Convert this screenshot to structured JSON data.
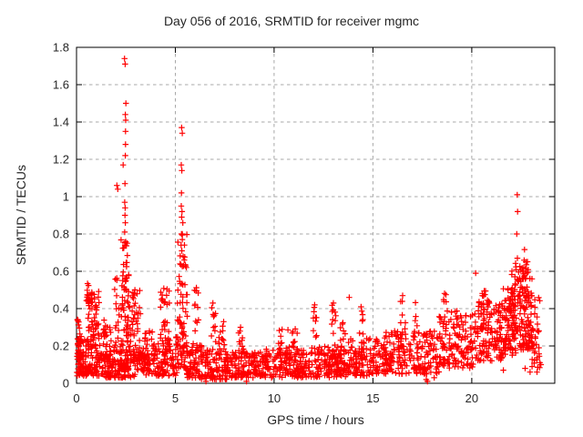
{
  "chart_data": {
    "type": "scatter",
    "title": "Day 056 of 2016, SRMTID for receiver mgmc",
    "xlabel": "GPS time / hours",
    "ylabel": "SRMTID / TECUs",
    "xlim": [
      0,
      24.2
    ],
    "ylim": [
      0,
      1.8
    ],
    "xticks": [
      0,
      5,
      10,
      15,
      20
    ],
    "xtick_labels": [
      "0",
      "5",
      "10",
      "15",
      "20"
    ],
    "yticks": [
      0,
      0.2,
      0.4,
      0.6,
      0.8,
      1.0,
      1.2,
      1.4,
      1.6,
      1.8
    ],
    "ytick_labels": [
      "0",
      "0.2",
      "0.4",
      "0.6",
      "0.8",
      "1",
      "1.2",
      "1.4",
      "1.6",
      "1.8"
    ],
    "grid": true,
    "legend": "none",
    "marker": {
      "shape": "plus",
      "size": 6.5,
      "color": "#ff0000"
    },
    "colors": {
      "marker": "#ff0000",
      "grid": "#a8a8a8",
      "border": "#000000",
      "text": "#262626",
      "background": "#ffffff"
    },
    "seed": 56,
    "points": [
      [
        2.43,
        1.74
      ],
      [
        2.46,
        1.71
      ],
      [
        2.5,
        1.5
      ],
      [
        2.47,
        1.44
      ],
      [
        2.49,
        1.41
      ],
      [
        2.48,
        1.35
      ],
      [
        2.48,
        1.28
      ],
      [
        2.47,
        1.22
      ],
      [
        2.36,
        1.17
      ],
      [
        2.45,
        1.07
      ],
      [
        2.04,
        1.06
      ],
      [
        2.09,
        1.04
      ],
      [
        2.44,
        0.97
      ],
      [
        2.46,
        0.94
      ],
      [
        2.45,
        0.9
      ],
      [
        2.47,
        0.86
      ],
      [
        2.44,
        0.81
      ],
      [
        5.32,
        1.37
      ],
      [
        5.35,
        1.34
      ],
      [
        5.3,
        1.17
      ],
      [
        5.33,
        1.14
      ],
      [
        5.31,
        1.02
      ],
      [
        5.3,
        0.95
      ],
      [
        5.34,
        0.92
      ],
      [
        5.32,
        0.89
      ],
      [
        5.38,
        0.86
      ],
      [
        5.31,
        0.8
      ],
      [
        5.35,
        0.77
      ],
      [
        5.29,
        0.74
      ],
      [
        5.33,
        0.71
      ],
      [
        5.4,
        0.68
      ],
      [
        5.45,
        0.66
      ],
      [
        5.24,
        0.64
      ],
      [
        22.3,
        1.01
      ],
      [
        22.32,
        0.92
      ],
      [
        22.28,
        0.8
      ],
      [
        22.31,
        0.67
      ],
      [
        0.6,
        0.47
      ],
      [
        0.66,
        0.45
      ],
      [
        16.5,
        0.47
      ],
      [
        13.8,
        0.46
      ],
      [
        6.9,
        0.43
      ],
      [
        13.0,
        0.43
      ],
      [
        12.05,
        0.42
      ],
      [
        14.4,
        0.41
      ],
      [
        8.3,
        0.3
      ],
      [
        20.2,
        0.59
      ],
      [
        17.7,
        0.02
      ],
      [
        17.76,
        0.01
      ],
      [
        6.55,
        0.01
      ],
      [
        8.6,
        0.01
      ],
      [
        23.5,
        0.1
      ],
      [
        22.95,
        0.06
      ],
      [
        18.1,
        0.03
      ],
      [
        21.6,
        0.07
      ],
      [
        22.7,
        0.08
      ],
      [
        23.3,
        0.06
      ]
    ],
    "clusters": [
      {
        "x": [
          0.02,
          0.6
        ],
        "y": [
          0.04,
          0.24
        ],
        "n": 70,
        "bias": 1.4
      },
      {
        "x": [
          0.02,
          0.25
        ],
        "y": [
          0.1,
          0.35
        ],
        "n": 25,
        "bias": 1.2
      },
      {
        "x": [
          0.5,
          1.15
        ],
        "y": [
          0.2,
          0.5
        ],
        "n": 60,
        "bias": 1.3
      },
      {
        "x": [
          0.55,
          0.8
        ],
        "y": [
          0.42,
          0.56
        ],
        "n": 10,
        "bias": 1.0
      },
      {
        "x": [
          0.6,
          1.4
        ],
        "y": [
          0.04,
          0.22
        ],
        "n": 70,
        "bias": 1.4
      },
      {
        "x": [
          1.25,
          1.75
        ],
        "y": [
          0.12,
          0.34
        ],
        "n": 35,
        "bias": 1.2
      },
      {
        "x": [
          1.4,
          2.3
        ],
        "y": [
          0.03,
          0.2
        ],
        "n": 80,
        "bias": 1.5
      },
      {
        "x": [
          1.92,
          2.18
        ],
        "y": [
          0.2,
          0.6
        ],
        "n": 16,
        "bias": 1.4
      },
      {
        "x": [
          2.25,
          2.65
        ],
        "y": [
          0.08,
          0.78
        ],
        "n": 85,
        "bias": 1.8
      },
      {
        "x": [
          2.7,
          3.25
        ],
        "y": [
          0.12,
          0.52
        ],
        "n": 50,
        "bias": 1.5
      },
      {
        "x": [
          2.3,
          3.7
        ],
        "y": [
          0.03,
          0.18
        ],
        "n": 70,
        "bias": 1.3
      },
      {
        "x": [
          3.3,
          4.25
        ],
        "y": [
          0.04,
          0.3
        ],
        "n": 75,
        "bias": 1.4
      },
      {
        "x": [
          4.25,
          4.7
        ],
        "y": [
          0.1,
          0.52
        ],
        "n": 45,
        "bias": 1.5
      },
      {
        "x": [
          4.3,
          5.1
        ],
        "y": [
          0.04,
          0.25
        ],
        "n": 55,
        "bias": 1.4
      },
      {
        "x": [
          5.1,
          5.6
        ],
        "y": [
          0.08,
          0.82
        ],
        "n": 85,
        "bias": 1.8
      },
      {
        "x": [
          5.55,
          6.35
        ],
        "y": [
          0.03,
          0.22
        ],
        "n": 70,
        "bias": 1.4
      },
      {
        "x": [
          5.95,
          6.2
        ],
        "y": [
          0.28,
          0.55
        ],
        "n": 12,
        "bias": 1.2
      },
      {
        "x": [
          6.3,
          7.65
        ],
        "y": [
          0.02,
          0.18
        ],
        "n": 110,
        "bias": 1.3
      },
      {
        "x": [
          6.8,
          7.05
        ],
        "y": [
          0.18,
          0.42
        ],
        "n": 12,
        "bias": 1.3
      },
      {
        "x": [
          7.15,
          7.5
        ],
        "y": [
          0.18,
          0.34
        ],
        "n": 14,
        "bias": 1.2
      },
      {
        "x": [
          7.6,
          9.6
        ],
        "y": [
          0.03,
          0.17
        ],
        "n": 150,
        "bias": 1.3
      },
      {
        "x": [
          8.2,
          8.45
        ],
        "y": [
          0.15,
          0.3
        ],
        "n": 10,
        "bias": 1.2
      },
      {
        "x": [
          9.6,
          11.6
        ],
        "y": [
          0.03,
          0.19
        ],
        "n": 150,
        "bias": 1.3
      },
      {
        "x": [
          10.2,
          11.3
        ],
        "y": [
          0.15,
          0.3
        ],
        "n": 25,
        "bias": 1.3
      },
      {
        "x": [
          11.6,
          13.7
        ],
        "y": [
          0.03,
          0.2
        ],
        "n": 160,
        "bias": 1.3
      },
      {
        "x": [
          11.95,
          12.15
        ],
        "y": [
          0.2,
          0.42
        ],
        "n": 9,
        "bias": 1.2
      },
      {
        "x": [
          12.9,
          13.12
        ],
        "y": [
          0.2,
          0.43
        ],
        "n": 10,
        "bias": 1.2
      },
      {
        "x": [
          13.35,
          13.65
        ],
        "y": [
          0.17,
          0.34
        ],
        "n": 10,
        "bias": 1.2
      },
      {
        "x": [
          13.7,
          15.3
        ],
        "y": [
          0.04,
          0.24
        ],
        "n": 120,
        "bias": 1.3
      },
      {
        "x": [
          14.3,
          14.55
        ],
        "y": [
          0.2,
          0.4
        ],
        "n": 8,
        "bias": 1.2
      },
      {
        "x": [
          15.3,
          16.4
        ],
        "y": [
          0.05,
          0.28
        ],
        "n": 90,
        "bias": 1.3
      },
      {
        "x": [
          16.4,
          16.65
        ],
        "y": [
          0.22,
          0.46
        ],
        "n": 10,
        "bias": 1.2
      },
      {
        "x": [
          16.4,
          18.35
        ],
        "y": [
          0.05,
          0.28
        ],
        "n": 130,
        "bias": 1.3
      },
      {
        "x": [
          17.0,
          17.25
        ],
        "y": [
          0.24,
          0.44
        ],
        "n": 9,
        "bias": 1.2
      },
      {
        "x": [
          18.35,
          20.1
        ],
        "y": [
          0.08,
          0.4
        ],
        "n": 140,
        "bias": 1.2
      },
      {
        "x": [
          18.5,
          18.75
        ],
        "y": [
          0.3,
          0.5
        ],
        "n": 8,
        "bias": 1.2
      },
      {
        "x": [
          20.1,
          21.6
        ],
        "y": [
          0.12,
          0.44
        ],
        "n": 140,
        "bias": 1.2
      },
      {
        "x": [
          20.5,
          20.85
        ],
        "y": [
          0.33,
          0.52
        ],
        "n": 12,
        "bias": 1.1
      },
      {
        "x": [
          21.6,
          22.25
        ],
        "y": [
          0.15,
          0.52
        ],
        "n": 90,
        "bias": 1.2
      },
      {
        "x": [
          22.0,
          22.45
        ],
        "y": [
          0.28,
          0.66
        ],
        "n": 45,
        "bias": 1.2
      },
      {
        "x": [
          22.4,
          23.05
        ],
        "y": [
          0.18,
          0.62
        ],
        "n": 100,
        "bias": 1.3
      },
      {
        "x": [
          22.55,
          22.85
        ],
        "y": [
          0.55,
          0.72
        ],
        "n": 14,
        "bias": 1.1
      },
      {
        "x": [
          23.0,
          23.45
        ],
        "y": [
          0.08,
          0.46
        ],
        "n": 40,
        "bias": 1.2
      }
    ]
  }
}
